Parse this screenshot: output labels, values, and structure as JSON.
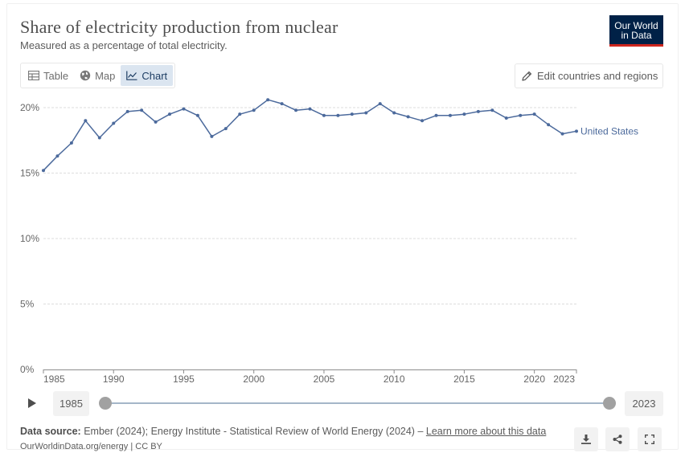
{
  "header": {
    "title": "Share of electricity production from nuclear",
    "subtitle": "Measured as a percentage of total electricity.",
    "logo_line1": "Our World",
    "logo_line2": "in Data"
  },
  "tabs": [
    {
      "label": "Table",
      "icon": "table-icon",
      "active": false
    },
    {
      "label": "Map",
      "icon": "globe-icon",
      "active": false
    },
    {
      "label": "Chart",
      "icon": "line-chart-icon",
      "active": true
    }
  ],
  "edit_button": {
    "label": "Edit countries and regions",
    "icon": "pencil-icon"
  },
  "chart_data": {
    "type": "line",
    "x": [
      1985,
      1986,
      1987,
      1988,
      1989,
      1990,
      1991,
      1992,
      1993,
      1994,
      1995,
      1996,
      1997,
      1998,
      1999,
      2000,
      2001,
      2002,
      2003,
      2004,
      2005,
      2006,
      2007,
      2008,
      2009,
      2010,
      2011,
      2012,
      2013,
      2014,
      2015,
      2016,
      2017,
      2018,
      2019,
      2020,
      2021,
      2022,
      2023
    ],
    "series": [
      {
        "name": "United States",
        "color": "#4c6a9c",
        "values": [
          15.2,
          16.3,
          17.3,
          19.0,
          17.7,
          18.8,
          19.7,
          19.8,
          18.9,
          19.5,
          19.9,
          19.4,
          17.8,
          18.4,
          19.5,
          19.8,
          20.6,
          20.3,
          19.8,
          19.9,
          19.4,
          19.4,
          19.5,
          19.6,
          20.3,
          19.6,
          19.3,
          19.0,
          19.4,
          19.4,
          19.5,
          19.7,
          19.8,
          19.2,
          19.4,
          19.5,
          18.7,
          18.0,
          18.2
        ]
      }
    ],
    "yticks": [
      "0%",
      "5%",
      "10%",
      "15%",
      "20%"
    ],
    "ytick_values": [
      0,
      5,
      10,
      15,
      20
    ],
    "xticks": [
      "1985",
      "1990",
      "1995",
      "2000",
      "2005",
      "2010",
      "2015",
      "2020",
      "2023"
    ],
    "xtick_values": [
      1985,
      1990,
      1995,
      2000,
      2005,
      2010,
      2015,
      2020,
      2023
    ],
    "xlim": [
      1985,
      2023
    ],
    "ylim": [
      0,
      20
    ],
    "grid": true,
    "gridline_color": "#dddddd"
  },
  "timeline": {
    "start_year": "1985",
    "end_year": "2023",
    "play_icon": "play-icon"
  },
  "footer": {
    "source_label": "Data source:",
    "source_text": "Ember (2024); Energy Institute - Statistical Review of World Energy (2024) –",
    "learn_more": "Learn more about this data",
    "attribution": "OurWorldinData.org/energy | CC BY"
  },
  "actions": [
    {
      "icon": "download-icon"
    },
    {
      "icon": "share-icon"
    },
    {
      "icon": "fullscreen-icon"
    }
  ]
}
